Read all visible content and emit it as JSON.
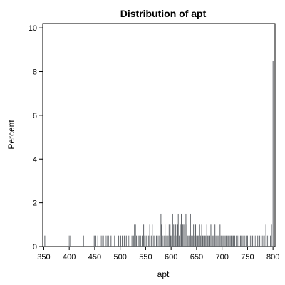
{
  "chart_data": {
    "type": "bar",
    "title": "Distribution of apt",
    "xlabel": "apt",
    "ylabel": "Percent",
    "xlim": [
      348,
      804
    ],
    "ylim": [
      0,
      10.2
    ],
    "x_ticks": [
      350,
      400,
      450,
      500,
      550,
      600,
      650,
      700,
      750,
      800
    ],
    "y_ticks": [
      0,
      2,
      4,
      6,
      8,
      10
    ],
    "grid": false,
    "bar_width": 1.3,
    "series": [
      {
        "values_x": [
          352,
          398,
          401,
          403,
          428,
          449,
          452,
          456,
          461,
          464,
          467,
          471,
          474,
          477,
          482,
          489,
          497,
          501,
          504,
          508,
          512,
          516,
          519,
          523,
          526,
          528,
          530,
          532,
          535,
          537,
          540,
          543,
          546,
          548,
          551,
          553,
          556,
          558,
          561,
          563,
          566,
          568,
          571,
          573,
          576,
          578,
          580,
          581,
          583,
          586,
          588,
          590,
          592,
          594,
          596,
          598,
          599,
          601,
          603,
          605,
          607,
          609,
          611,
          613,
          614,
          616,
          618,
          620,
          621,
          623,
          625,
          627,
          629,
          631,
          633,
          635,
          637,
          638,
          640,
          642,
          644,
          646,
          648,
          650,
          652,
          654,
          656,
          658,
          660,
          662,
          664,
          666,
          668,
          670,
          672,
          674,
          676,
          678,
          680,
          682,
          684,
          686,
          688,
          690,
          692,
          694,
          696,
          698,
          700,
          702,
          704,
          706,
          708,
          710,
          712,
          714,
          716,
          718,
          720,
          722,
          725,
          728,
          730,
          733,
          736,
          738,
          741,
          744,
          747,
          750,
          753,
          756,
          760,
          763,
          766,
          770,
          774,
          777,
          780,
          783,
          786,
          789,
          792,
          795,
          797,
          800
        ],
        "values_y": [
          0.5,
          0.5,
          0.5,
          0.5,
          0.5,
          0.5,
          0.5,
          0.5,
          0.5,
          0.5,
          0.5,
          0.5,
          0.5,
          0.5,
          0.5,
          0.5,
          0.5,
          0.5,
          0.5,
          0.5,
          0.5,
          0.5,
          0.5,
          0.5,
          0.5,
          1.0,
          1.0,
          0.5,
          0.5,
          0.5,
          0.5,
          0.5,
          1.0,
          0.5,
          0.5,
          0.5,
          0.5,
          1.0,
          0.5,
          1.0,
          0.5,
          0.5,
          0.5,
          0.5,
          0.5,
          0.5,
          1.5,
          1.0,
          0.5,
          0.5,
          1.0,
          0.5,
          0.5,
          0.5,
          1.0,
          1.0,
          0.5,
          0.5,
          1.5,
          1.0,
          0.5,
          1.0,
          0.5,
          1.0,
          1.5,
          0.5,
          1.0,
          1.5,
          0.5,
          1.0,
          1.0,
          0.5,
          1.5,
          1.0,
          0.5,
          0.5,
          0.5,
          1.5,
          0.5,
          0.5,
          1.0,
          0.5,
          1.0,
          0.5,
          0.5,
          0.5,
          1.0,
          0.5,
          1.0,
          0.5,
          0.5,
          0.5,
          0.5,
          1.0,
          0.5,
          0.5,
          0.5,
          1.0,
          0.5,
          0.5,
          0.5,
          1.0,
          0.5,
          0.5,
          0.5,
          0.5,
          1.0,
          0.5,
          0.5,
          0.5,
          0.5,
          0.5,
          0.5,
          0.5,
          0.5,
          0.5,
          0.5,
          0.5,
          0.5,
          0.5,
          0.5,
          0.5,
          0.5,
          0.5,
          0.5,
          0.5,
          0.5,
          0.5,
          0.5,
          0.5,
          0.5,
          0.5,
          0.5,
          0.5,
          0.5,
          0.5,
          0.5,
          0.5,
          0.5,
          0.5,
          1.0,
          0.5,
          0.5,
          0.5,
          1.0,
          8.5
        ],
        "color": "#5f6368"
      }
    ]
  }
}
